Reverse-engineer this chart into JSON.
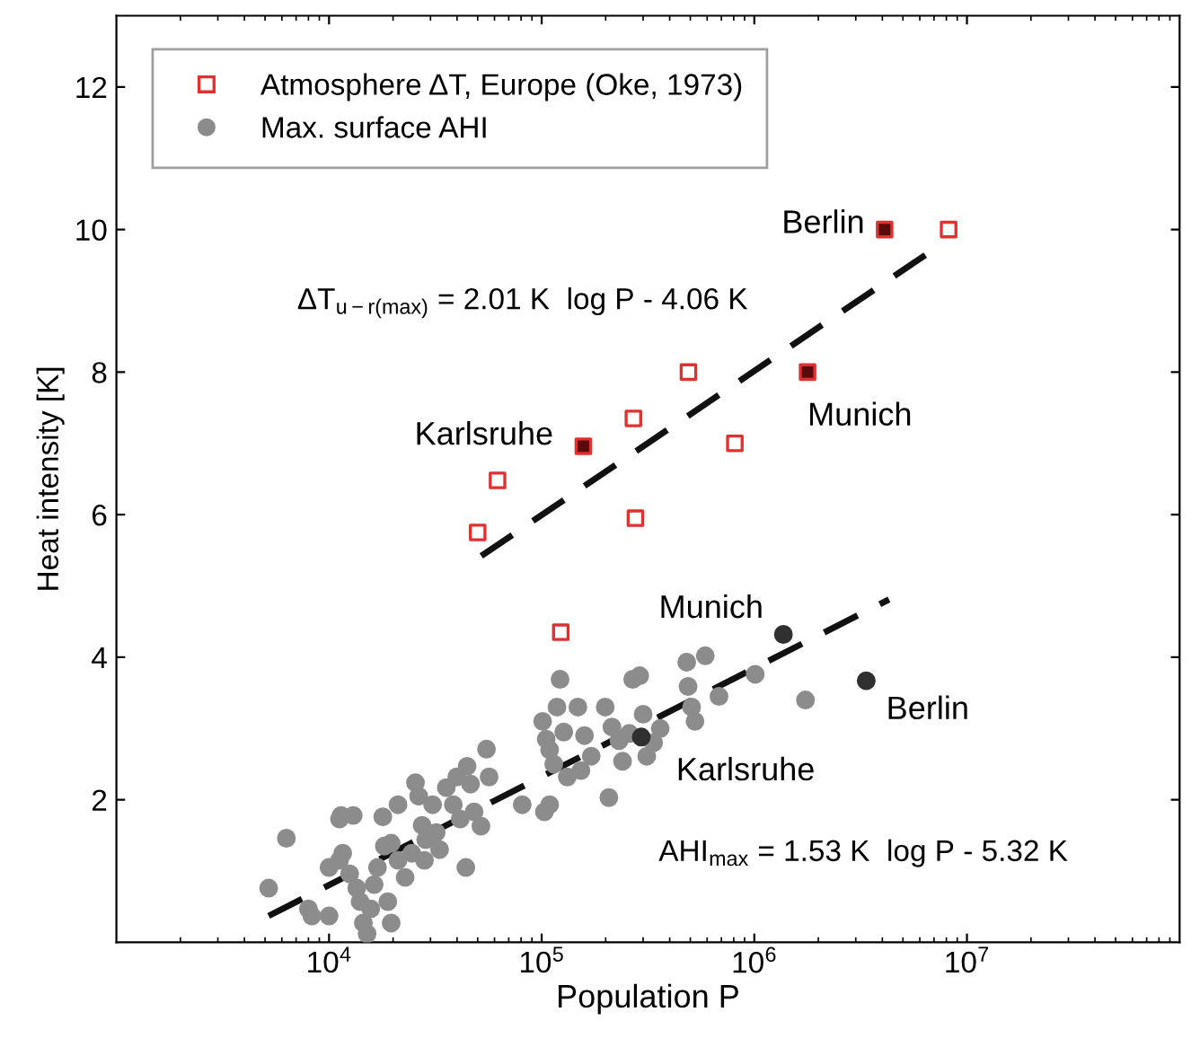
{
  "chart_data": {
    "type": "scatter",
    "xlabel": "Population P",
    "ylabel": "Heat intensity [K]",
    "log": "x",
    "xlim": [
      1000,
      100000000
    ],
    "ylim": [
      0,
      13
    ],
    "xticks": [
      {
        "value": 10000,
        "label": "10$^{4}$"
      },
      {
        "value": 100000,
        "label": "10$^{5}$"
      },
      {
        "value": 1000000,
        "label": "10$^{6}$"
      },
      {
        "value": 10000000,
        "label": "10$^{7}$"
      }
    ],
    "yticks": [
      2,
      4,
      6,
      8,
      10,
      12
    ],
    "grid": false,
    "legend": "top left",
    "series": [
      {
        "name": "Atmosphere ΔT, Europe (Oke, 1973)",
        "color": "#e03030",
        "marker": "square",
        "x": [
          8200000,
          490000,
          270000,
          810000,
          62000,
          50000,
          276000,
          123000
        ],
        "values": [
          10,
          8,
          7.35,
          7.0,
          6.48,
          5.75,
          5.95,
          4.35
        ]
      },
      {
        "name": "Max. surface AHI",
        "color": "#8c8c8c",
        "marker": "circle",
        "x": [
          5200,
          6300,
          8000,
          8300,
          10000,
          10000,
          11200,
          11200,
          11400,
          13000,
          11600,
          12500,
          13500,
          14000,
          14500,
          15100,
          15700,
          16300,
          16900,
          18200,
          17900,
          19600,
          18900,
          19600,
          21100,
          21100,
          22800,
          24500,
          25500,
          26400,
          27400,
          28100,
          28500,
          30700,
          31900,
          33100,
          35600,
          38400,
          39900,
          41400,
          44000,
          44600,
          46300,
          48100,
          51800,
          55000,
          56600,
          81000,
          103000,
          109000,
          101000,
          105000,
          109000,
          114000,
          118000,
          122000,
          127000,
          132000,
          148000,
          153000,
          159000,
          171000,
          199000,
          207000,
          214000,
          231000,
          240000,
          258000,
          268000,
          289000,
          300000,
          312000,
          336000,
          361000,
          481000,
          488000,
          507000,
          526000,
          588000,
          682000,
          1010000,
          1740000
        ],
        "values": [
          0.76,
          1.46,
          0.47,
          0.37,
          0.37,
          1.05,
          1.15,
          1.73,
          1.78,
          1.78,
          1.25,
          0.96,
          0.76,
          0.57,
          0.27,
          0.12,
          0.47,
          0.81,
          1.05,
          1.35,
          1.76,
          1.39,
          0.57,
          0.27,
          1.15,
          1.93,
          0.91,
          1.25,
          2.24,
          2.05,
          1.64,
          1.15,
          1.44,
          1.93,
          1.54,
          1.3,
          2.17,
          1.93,
          2.32,
          1.73,
          1.05,
          2.47,
          2.22,
          1.83,
          1.63,
          2.71,
          2.32,
          1.93,
          1.83,
          1.93,
          3.1,
          2.85,
          2.7,
          2.5,
          3.3,
          3.69,
          2.95,
          2.32,
          3.3,
          2.41,
          2.9,
          2.61,
          3.3,
          2.03,
          3.02,
          2.83,
          2.54,
          2.93,
          3.69,
          3.74,
          3.2,
          2.61,
          2.8,
          3.0,
          3.93,
          3.59,
          3.3,
          3.1,
          4.02,
          3.45,
          3.76,
          3.4
        ]
      },
      {
        "color": "#5a0a0a",
        "marker": "square",
        "x": [
          4100000,
          1780000,
          157000
        ],
        "values": [
          10,
          8,
          6.96
        ]
      },
      {
        "color": "#303030",
        "marker": "circle",
        "x": [
          1370000,
          3360000,
          294000
        ],
        "values": [
          4.32,
          3.67,
          2.88
        ]
      },
      {
        "type": "line",
        "color": "#111111",
        "line_style": "dashed",
        "marker": "none",
        "x": [
          52000,
          6500000
        ],
        "values": [
          5.42,
          9.66
        ]
      },
      {
        "type": "line",
        "color": "#111111",
        "line_style": "dashed",
        "marker": "none",
        "x": [
          5200,
          4300000
        ],
        "values": [
          0.37,
          4.81
        ]
      }
    ],
    "annotations": [
      {
        "text": "Berlin",
        "x": 4100000,
        "y": 10
      },
      {
        "text": "Munich",
        "x": 1780000,
        "y": 8
      },
      {
        "text": "Karlsruhe",
        "x": 157000,
        "y": 6.96
      },
      {
        "text": "Munich",
        "x": 1370000,
        "y": 4.32
      },
      {
        "text": "Berlin",
        "x": 3360000,
        "y": 3.67
      },
      {
        "text": "Karlsruhe",
        "x": 294000,
        "y": 2.88
      },
      "ΔT$_{u−r(max)}$ = 2.01 K  log P - 4.06 K",
      "AHI$_{max}$ = 1.53 K  log P - 5.32 K"
    ]
  }
}
